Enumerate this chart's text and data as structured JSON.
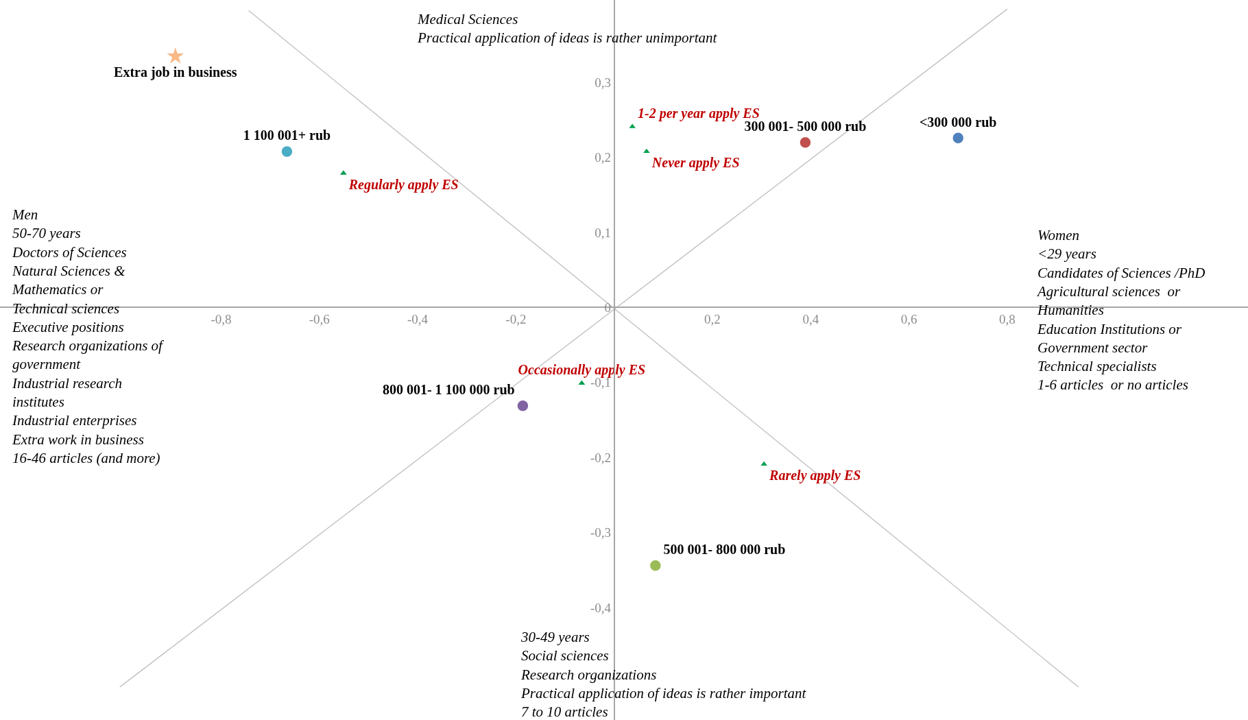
{
  "chart_data": {
    "type": "scatter",
    "legend": false,
    "xlim": [
      -1.25,
      1.29
    ],
    "ylim": [
      -0.55,
      0.41
    ],
    "xticks": [
      {
        "value": -0.8,
        "label": "-0,8"
      },
      {
        "value": -0.6,
        "label": "-0,6"
      },
      {
        "value": -0.4,
        "label": "-0,4"
      },
      {
        "value": -0.2,
        "label": "-0,2"
      },
      {
        "value": 0,
        "label": null
      },
      {
        "value": 0.2,
        "label": "0,2"
      },
      {
        "value": 0.4,
        "label": "0,4"
      },
      {
        "value": 0.6,
        "label": "0,6"
      },
      {
        "value": 0.8,
        "label": "0,8"
      }
    ],
    "yticks": [
      {
        "value": -0.4,
        "label": "-0,4"
      },
      {
        "value": -0.3,
        "label": "-0,3"
      },
      {
        "value": -0.2,
        "label": "-0,2"
      },
      {
        "value": -0.1,
        "label": "-0,1"
      },
      0,
      {
        "value": 0.1,
        "label": "0,1"
      },
      {
        "value": 0.2,
        "label": "0,2"
      },
      {
        "value": 0.3,
        "label": "0,3"
      }
    ],
    "series": [
      {
        "type": "line",
        "color": "#bfbfbf",
        "x": [
          -0.744,
          0.945
        ],
        "values": [
          0.396,
          -0.506
        ]
      },
      {
        "type": "line",
        "color": "#bfbfbf",
        "x": [
          -1.006,
          0.8
        ],
        "values": [
          -0.506,
          0.398
        ]
      },
      {
        "name": "Extra job in business",
        "color": "#f9b987",
        "marker": "star",
        "x": [
          -0.893
        ],
        "values": [
          0.335
        ]
      },
      {
        "name": "1 100 001+ rub",
        "color": "#4bacc6",
        "marker": "circle",
        "x": [
          -0.666
        ],
        "values": [
          0.208
        ]
      },
      {
        "name": "Regularly apply ES",
        "color": "#00a050",
        "marker": "triangle",
        "x": [
          -0.551
        ],
        "values": [
          0.179
        ]
      },
      {
        "name": "1-2 per year apply ES",
        "color": "#00a050",
        "marker": "triangle",
        "x": [
          0.037
        ],
        "values": [
          0.241
        ]
      },
      {
        "name": "Never apply ES",
        "color": "#00a050",
        "marker": "triangle",
        "x": [
          0.066
        ],
        "values": [
          0.208
        ]
      },
      {
        "name": "300 001- 500 000 rub",
        "color": "#c0504d",
        "marker": "circle",
        "x": [
          0.389
        ],
        "values": [
          0.22
        ]
      },
      {
        "name": "<300 000 rub",
        "color": "#4f81bd",
        "marker": "circle",
        "x": [
          0.7
        ],
        "values": [
          0.226
        ]
      },
      {
        "name": "Occasionally apply ES",
        "color": "#00a050",
        "marker": "triangle",
        "x": [
          -0.066
        ],
        "values": [
          -0.101
        ]
      },
      {
        "name": "800 001- 1 100 000 rub",
        "color": "#8064a2",
        "marker": "circle",
        "x": [
          -0.186
        ],
        "values": [
          -0.131
        ]
      },
      {
        "name": "Rarely apply ES",
        "color": "#00a050",
        "marker": "triangle",
        "x": [
          0.305
        ],
        "values": [
          -0.209
        ]
      },
      {
        "name": "500 001- 800 000 rub",
        "color": "#9bbb59",
        "marker": "circle",
        "x": [
          0.084
        ],
        "values": [
          -0.344
        ]
      }
    ],
    "annotations": [
      "Medical Sciences\nPractical application of ideas is rather unimportant",
      "Men\n50-70 years\nDoctors of Sciences\nNatural Sciences &\nMathematics or\nTechnical sciences\nExecutive positions\nResearch organizations of\ngovernment\nIndustrial research\ninstitutes\nIndustrial enterprises\nExtra work in business\n16-46 articles (and more)",
      "Women\n<29 years\nCandidates of Sciences /PhD\nAgricultural sciences  or\nHumanities\nEducation Institutions or\nGovernment sector\nTechnical specialists\n1-6 articles  or no articles",
      "30-49 years\nSocial sciences\nResearch organizations\nPractical application of ideas is rather important\n7 to 10 articles"
    ]
  }
}
